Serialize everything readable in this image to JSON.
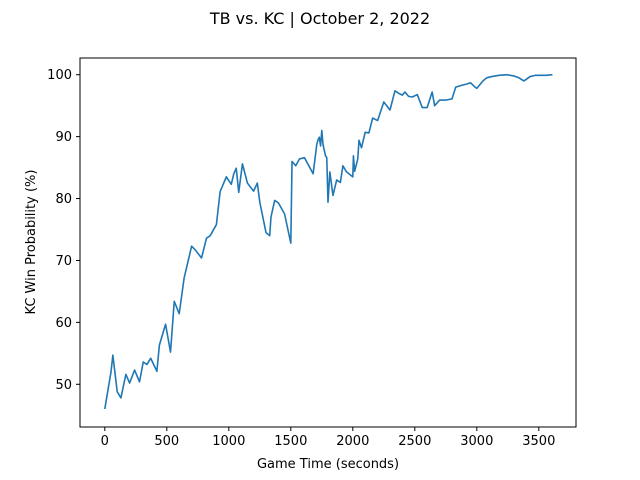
{
  "chart_data": {
    "type": "line",
    "title": "TB vs. KC | October 2, 2022",
    "xlabel": "Game Time (seconds)",
    "ylabel": "KC Win Probability (%)",
    "xlim": [
      -200,
      3800
    ],
    "ylim": [
      43.1,
      102.7
    ],
    "xticks": [
      0,
      500,
      1000,
      1500,
      2000,
      2500,
      3000,
      3500
    ],
    "yticks": [
      50,
      60,
      70,
      80,
      90,
      100
    ],
    "grid": false,
    "legend": "none",
    "series": [
      {
        "color": "#1f77b4",
        "x": [
          0,
          50,
          65,
          100,
          130,
          170,
          200,
          240,
          280,
          310,
          340,
          370,
          420,
          440,
          490,
          530,
          560,
          600,
          640,
          700,
          730,
          780,
          820,
          850,
          900,
          930,
          980,
          1020,
          1040,
          1060,
          1080,
          1110,
          1150,
          1200,
          1230,
          1250,
          1300,
          1330,
          1340,
          1370,
          1400,
          1450,
          1500,
          1510,
          1540,
          1570,
          1610,
          1640,
          1680,
          1710,
          1720,
          1730,
          1740,
          1750,
          1760,
          1780,
          1790,
          1800,
          1815,
          1840,
          1870,
          1900,
          1920,
          1950,
          2000,
          2005,
          2015,
          2040,
          2050,
          2070,
          2100,
          2130,
          2160,
          2200,
          2250,
          2300,
          2340,
          2370,
          2400,
          2420,
          2450,
          2480,
          2520,
          2560,
          2600,
          2630,
          2640,
          2660,
          2700,
          2750,
          2800,
          2830,
          2880,
          2920,
          2950,
          2980,
          3000,
          3050,
          3080,
          3120,
          3180,
          3240,
          3300,
          3340,
          3380,
          3430,
          3470,
          3520,
          3560,
          3610
        ],
        "y": [
          46.0,
          52.0,
          54.7,
          48.8,
          47.8,
          51.6,
          50.2,
          52.3,
          50.4,
          53.6,
          53.2,
          54.2,
          52.1,
          56.3,
          59.7,
          55.2,
          63.4,
          61.4,
          67.2,
          72.3,
          71.7,
          70.4,
          73.6,
          74.0,
          75.8,
          81.1,
          83.5,
          82.3,
          84.0,
          84.9,
          81.0,
          85.6,
          82.5,
          81.2,
          82.5,
          79.4,
          74.5,
          74.0,
          77.0,
          79.7,
          79.3,
          77.5,
          72.8,
          86.0,
          85.3,
          86.4,
          86.6,
          85.5,
          84.0,
          88.8,
          89.5,
          89.9,
          88.5,
          91.0,
          88.7,
          86.9,
          86.6,
          79.4,
          84.3,
          80.5,
          83.0,
          82.6,
          85.3,
          84.3,
          83.5,
          86.9,
          84.4,
          86.4,
          89.4,
          88.2,
          90.7,
          90.6,
          93.0,
          92.6,
          95.6,
          94.3,
          97.4,
          97.0,
          96.7,
          97.2,
          96.5,
          96.4,
          96.8,
          94.7,
          94.7,
          96.6,
          97.2,
          95.0,
          95.9,
          95.9,
          96.1,
          98.0,
          98.3,
          98.5,
          98.7,
          98.1,
          97.8,
          99.0,
          99.5,
          99.7,
          99.9,
          100.0,
          99.8,
          99.5,
          99.0,
          99.7,
          99.9,
          99.9,
          99.9,
          100.0
        ]
      }
    ]
  }
}
